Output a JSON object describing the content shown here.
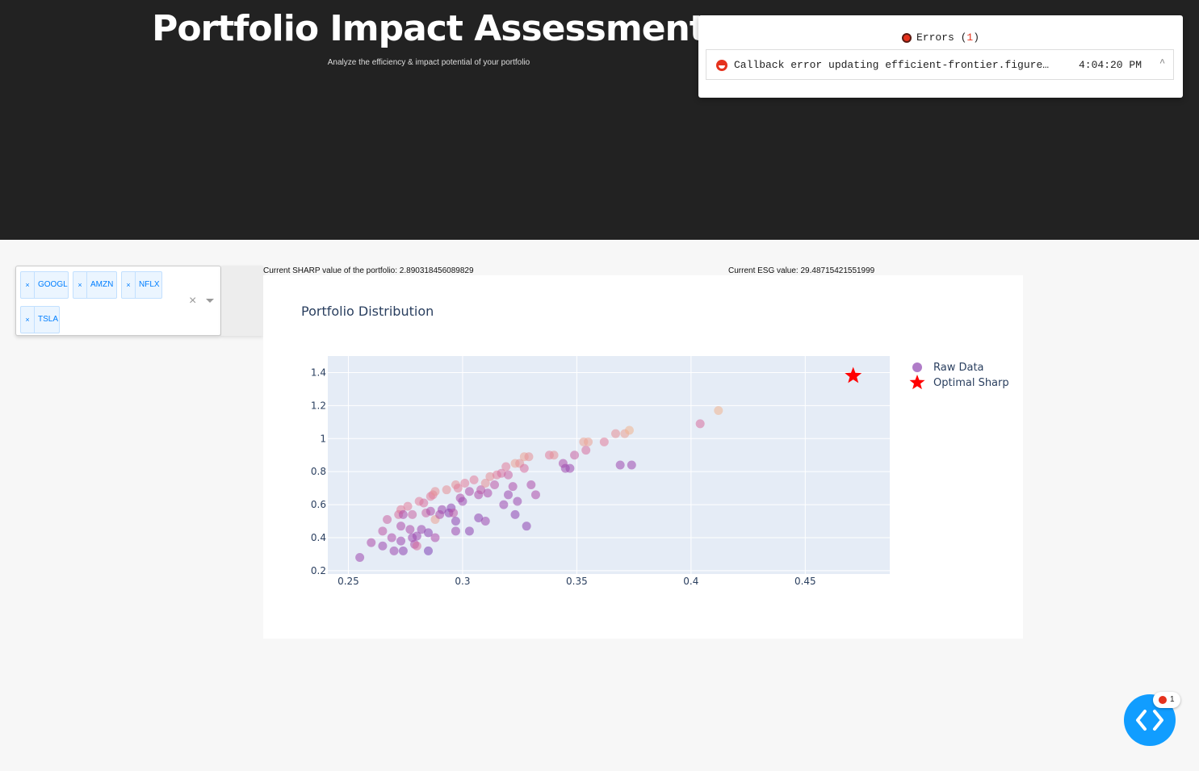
{
  "header": {
    "title": "Portfolio Impact Assessment",
    "subtitle": "Analyze the efficiency & impact potential of your portfolio",
    "background_color": "#222222"
  },
  "errors_panel": {
    "label": "Errors (",
    "count": "1",
    "label_end": ")",
    "error": {
      "message": "Callback error updating efficient-frontier.figure…",
      "time": "4:04:20 PM",
      "caret": "^"
    }
  },
  "ticker_select": {
    "selected": [
      "GOOGL",
      "AMZN",
      "NFLX",
      "TSLA"
    ],
    "remove_glyph": "×",
    "clear_glyph": "×"
  },
  "stats": {
    "sharp": "Current SHARP value of the portfolio: 2.890318456089829",
    "esg": "Current ESG value: 29.48715421551999"
  },
  "debug_badge": {
    "count": "1"
  },
  "colors": {
    "accent": "#119dff",
    "error": "#e5321d",
    "optimal": "#ff0000"
  },
  "chart_data": {
    "type": "scatter",
    "title": "Portfolio Distribution",
    "xlabel": "",
    "ylabel": "",
    "xlim": [
      0.241,
      0.487
    ],
    "ylim": [
      0.18,
      1.5
    ],
    "x_ticks": [
      "0.25",
      "0.3",
      "0.35",
      "0.4",
      "0.45"
    ],
    "y_ticks": [
      "0.2",
      "0.4",
      "0.6",
      "0.8",
      "1",
      "1.2",
      "1.4"
    ],
    "grid": true,
    "legend_position": "top-right",
    "colorscale": [
      "#7e3fb5",
      "#b24fa9",
      "#e0789b",
      "#f0b58f"
    ],
    "series": [
      {
        "name": "Raw Data",
        "marker": "circle",
        "points": [
          [
            0.255,
            0.28,
            0.2
          ],
          [
            0.26,
            0.37,
            0.3
          ],
          [
            0.265,
            0.44,
            0.4
          ],
          [
            0.265,
            0.35,
            0.2
          ],
          [
            0.267,
            0.51,
            0.5
          ],
          [
            0.269,
            0.4,
            0.3
          ],
          [
            0.27,
            0.32,
            0.2
          ],
          [
            0.272,
            0.54,
            0.6
          ],
          [
            0.273,
            0.57,
            0.7
          ],
          [
            0.273,
            0.47,
            0.3
          ],
          [
            0.273,
            0.38,
            0.2
          ],
          [
            0.274,
            0.32,
            0.1
          ],
          [
            0.274,
            0.54,
            0.3
          ],
          [
            0.276,
            0.59,
            0.7
          ],
          [
            0.277,
            0.45,
            0.3
          ],
          [
            0.278,
            0.54,
            0.5
          ],
          [
            0.278,
            0.4,
            0.2
          ],
          [
            0.279,
            0.36,
            0.3
          ],
          [
            0.28,
            0.35,
            0.6
          ],
          [
            0.28,
            0.41,
            0.2
          ],
          [
            0.281,
            0.62,
            0.7
          ],
          [
            0.282,
            0.45,
            0.2
          ],
          [
            0.283,
            0.61,
            0.6
          ],
          [
            0.284,
            0.55,
            0.5
          ],
          [
            0.285,
            0.43,
            0.1
          ],
          [
            0.285,
            0.32,
            0.0
          ],
          [
            0.286,
            0.65,
            0.7
          ],
          [
            0.286,
            0.56,
            0.3
          ],
          [
            0.287,
            0.66,
            0.7
          ],
          [
            0.288,
            0.4,
            0.3
          ],
          [
            0.288,
            0.68,
            0.8
          ],
          [
            0.288,
            0.51,
            0.9
          ],
          [
            0.29,
            0.54,
            0.3
          ],
          [
            0.291,
            0.57,
            0.2
          ],
          [
            0.293,
            0.69,
            0.8
          ],
          [
            0.294,
            0.55,
            0.1
          ],
          [
            0.295,
            0.58,
            0.1
          ],
          [
            0.296,
            0.55,
            0.4
          ],
          [
            0.297,
            0.5,
            0.1
          ],
          [
            0.297,
            0.72,
            0.8
          ],
          [
            0.297,
            0.44,
            0.2
          ],
          [
            0.298,
            0.7,
            0.7
          ],
          [
            0.299,
            0.64,
            0.3
          ],
          [
            0.3,
            0.62,
            0.2
          ],
          [
            0.301,
            0.73,
            0.7
          ],
          [
            0.303,
            0.44,
            0.1
          ],
          [
            0.303,
            0.68,
            0.3
          ],
          [
            0.305,
            0.75,
            0.7
          ],
          [
            0.307,
            0.66,
            0.3
          ],
          [
            0.307,
            0.52,
            0.1
          ],
          [
            0.308,
            0.69,
            0.4
          ],
          [
            0.31,
            0.5,
            0.2
          ],
          [
            0.31,
            0.73,
            0.8
          ],
          [
            0.311,
            0.67,
            0.3
          ],
          [
            0.312,
            0.77,
            0.8
          ],
          [
            0.314,
            0.72,
            0.4
          ],
          [
            0.315,
            0.78,
            0.7
          ],
          [
            0.317,
            0.79,
            0.6
          ],
          [
            0.318,
            0.6,
            0.2
          ],
          [
            0.319,
            0.83,
            0.7
          ],
          [
            0.32,
            0.78,
            0.5
          ],
          [
            0.32,
            0.66,
            0.2
          ],
          [
            0.322,
            0.71,
            0.3
          ],
          [
            0.323,
            0.85,
            0.9
          ],
          [
            0.323,
            0.54,
            0.1
          ],
          [
            0.324,
            0.62,
            0.2
          ],
          [
            0.325,
            0.85,
            0.8
          ],
          [
            0.327,
            0.89,
            0.9
          ],
          [
            0.327,
            0.82,
            0.6
          ],
          [
            0.328,
            0.47,
            0.1
          ],
          [
            0.329,
            0.89,
            0.8
          ],
          [
            0.33,
            0.72,
            0.3
          ],
          [
            0.332,
            0.66,
            0.3
          ],
          [
            0.338,
            0.9,
            0.7
          ],
          [
            0.34,
            0.9,
            0.8
          ],
          [
            0.344,
            0.85,
            0.3
          ],
          [
            0.345,
            0.82,
            0.2
          ],
          [
            0.347,
            0.82,
            0.2
          ],
          [
            0.349,
            0.9,
            0.5
          ],
          [
            0.353,
            0.98,
            0.9
          ],
          [
            0.354,
            0.93,
            0.6
          ],
          [
            0.355,
            0.98,
            0.9
          ],
          [
            0.362,
            0.98,
            0.7
          ],
          [
            0.367,
            1.03,
            0.8
          ],
          [
            0.369,
            0.84,
            0.2
          ],
          [
            0.371,
            1.03,
            0.9
          ],
          [
            0.373,
            1.05,
            1.0
          ],
          [
            0.374,
            0.84,
            0.2
          ],
          [
            0.404,
            1.09,
            0.6
          ],
          [
            0.412,
            1.17,
            1.0
          ]
        ]
      },
      {
        "name": "Optimal Sharp",
        "marker": "star",
        "points": [
          [
            0.471,
            1.38
          ]
        ]
      }
    ]
  }
}
